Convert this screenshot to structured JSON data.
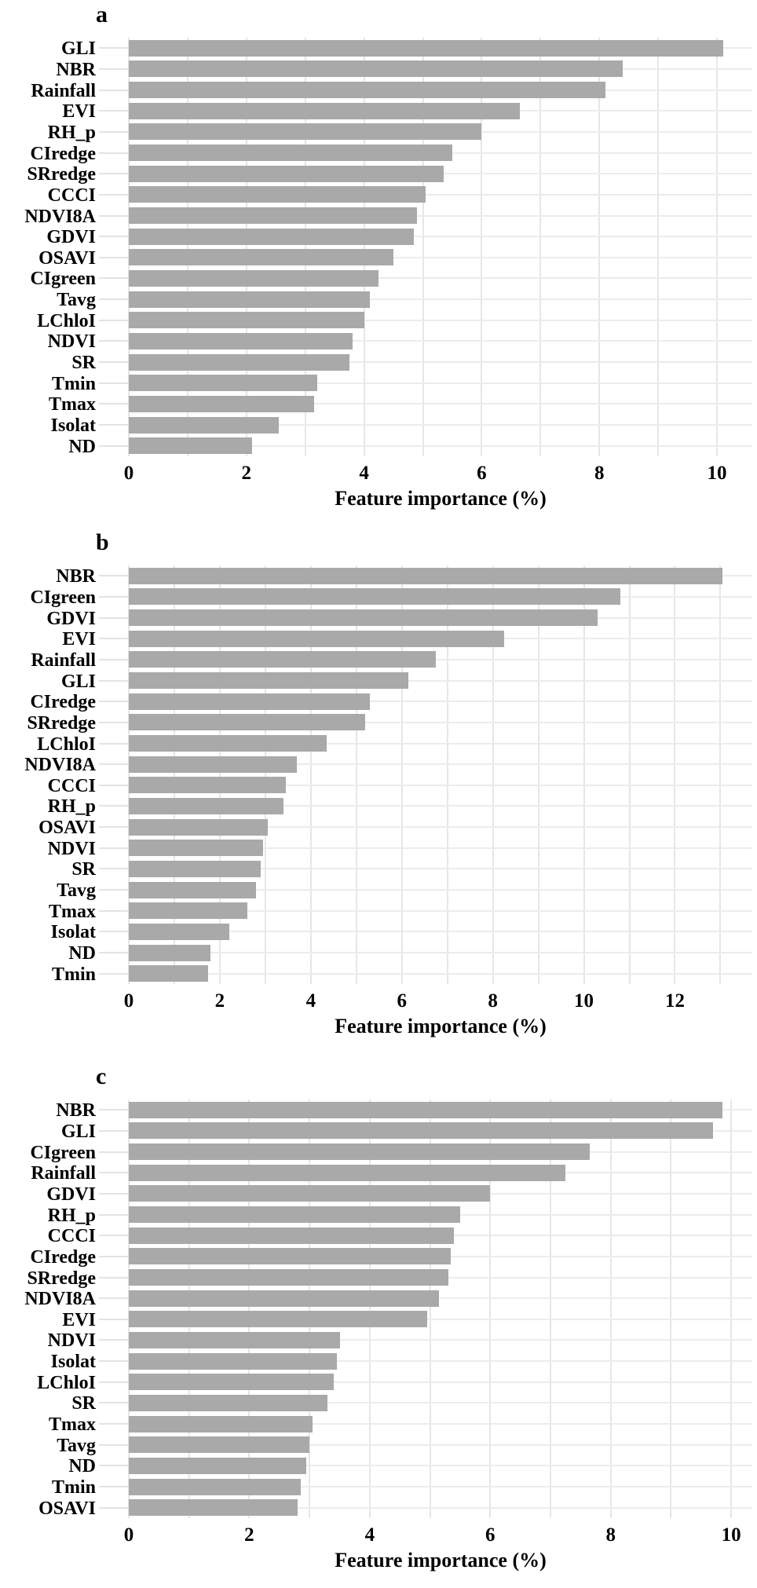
{
  "style": {
    "background": "#ffffff",
    "bar_color": "#a9a9a9",
    "grid_color": "#e6e6e6",
    "text_color": "#000000"
  },
  "chart_data": [
    {
      "type": "bar",
      "orientation": "horizontal",
      "title": "a",
      "xlabel": "Feature importance (%)",
      "categories": [
        "GLI",
        "NBR",
        "Rainfall",
        "EVI",
        "RH_p",
        "CIredge",
        "SRredge",
        "CCCI",
        "NDVI8A",
        "GDVI",
        "OSAVI",
        "CIgreen",
        "Tavg",
        "LChloI",
        "NDVI",
        "SR",
        "Tmin",
        "Tmax",
        "Isolat",
        "ND"
      ],
      "values": [
        10.1,
        8.4,
        8.1,
        6.65,
        6.0,
        5.5,
        5.35,
        5.05,
        4.9,
        4.85,
        4.5,
        4.25,
        4.1,
        4.0,
        3.8,
        3.75,
        3.2,
        3.15,
        2.55,
        2.1
      ],
      "xlim": [
        0,
        10.6
      ],
      "xticks": [
        0,
        2,
        4,
        6,
        8,
        10
      ],
      "gridline_step": 1,
      "grid": "vertical-on",
      "legend": "none"
    },
    {
      "type": "bar",
      "orientation": "horizontal",
      "title": "b",
      "xlabel": "Feature importance (%)",
      "categories": [
        "NBR",
        "CIgreen",
        "GDVI",
        "EVI",
        "Rainfall",
        "GLI",
        "CIredge",
        "SRredge",
        "LChloI",
        "NDVI8A",
        "CCCI",
        "RH_p",
        "OSAVI",
        "NDVI",
        "SR",
        "Tavg",
        "Tmax",
        "Isolat",
        "ND",
        "Tmin"
      ],
      "values": [
        13.05,
        10.8,
        10.3,
        8.25,
        6.75,
        6.15,
        5.3,
        5.2,
        4.35,
        3.7,
        3.45,
        3.4,
        3.05,
        2.95,
        2.9,
        2.8,
        2.6,
        2.2,
        1.8,
        1.75
      ],
      "xlim": [
        0,
        13.7
      ],
      "xticks": [
        0,
        2,
        4,
        6,
        8,
        10,
        12
      ],
      "gridline_step": 1,
      "grid": "vertical-on",
      "legend": "none"
    },
    {
      "type": "bar",
      "orientation": "horizontal",
      "title": "c",
      "xlabel": "Feature importance (%)",
      "categories": [
        "NBR",
        "GLI",
        "CIgreen",
        "Rainfall",
        "GDVI",
        "RH_p",
        "CCCI",
        "CIredge",
        "SRredge",
        "NDVI8A",
        "EVI",
        "NDVI",
        "Isolat",
        "LChloI",
        "SR",
        "Tmax",
        "Tavg",
        "ND",
        "Tmin",
        "OSAVI"
      ],
      "values": [
        9.85,
        9.7,
        7.65,
        7.25,
        6.0,
        5.5,
        5.4,
        5.35,
        5.3,
        5.15,
        4.95,
        3.5,
        3.45,
        3.4,
        3.3,
        3.05,
        3.0,
        2.95,
        2.85,
        2.8
      ],
      "xlim": [
        0,
        10.35
      ],
      "xticks": [
        0,
        2,
        4,
        6,
        8,
        10
      ],
      "gridline_step": 1,
      "grid": "vertical-on",
      "legend": "none"
    }
  ]
}
